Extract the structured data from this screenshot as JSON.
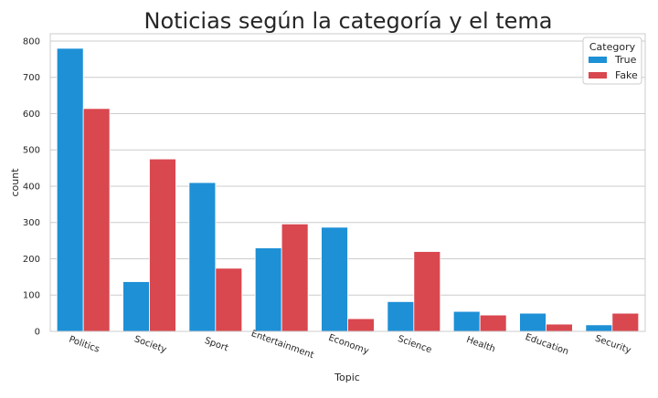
{
  "chart_data": {
    "type": "bar",
    "title": "Noticias según la categoría y el tema",
    "xlabel": "Topic",
    "ylabel": "count",
    "ylim": [
      0,
      820
    ],
    "yticks": [
      0,
      100,
      200,
      300,
      400,
      500,
      600,
      700,
      800
    ],
    "grid": true,
    "legend_position": "top-right",
    "legend_title": "Category",
    "categories": [
      "Politics",
      "Society",
      "Sport",
      "Entertainment",
      "Economy",
      "Science",
      "Health",
      "Education",
      "Security"
    ],
    "series": [
      {
        "name": "True",
        "color": "#1e90d6",
        "values": [
          780,
          137,
          410,
          230,
          287,
          82,
          55,
          50,
          18
        ]
      },
      {
        "name": "Fake",
        "color": "#d9474f",
        "values": [
          614,
          475,
          174,
          296,
          35,
          220,
          45,
          20,
          50
        ]
      }
    ]
  }
}
